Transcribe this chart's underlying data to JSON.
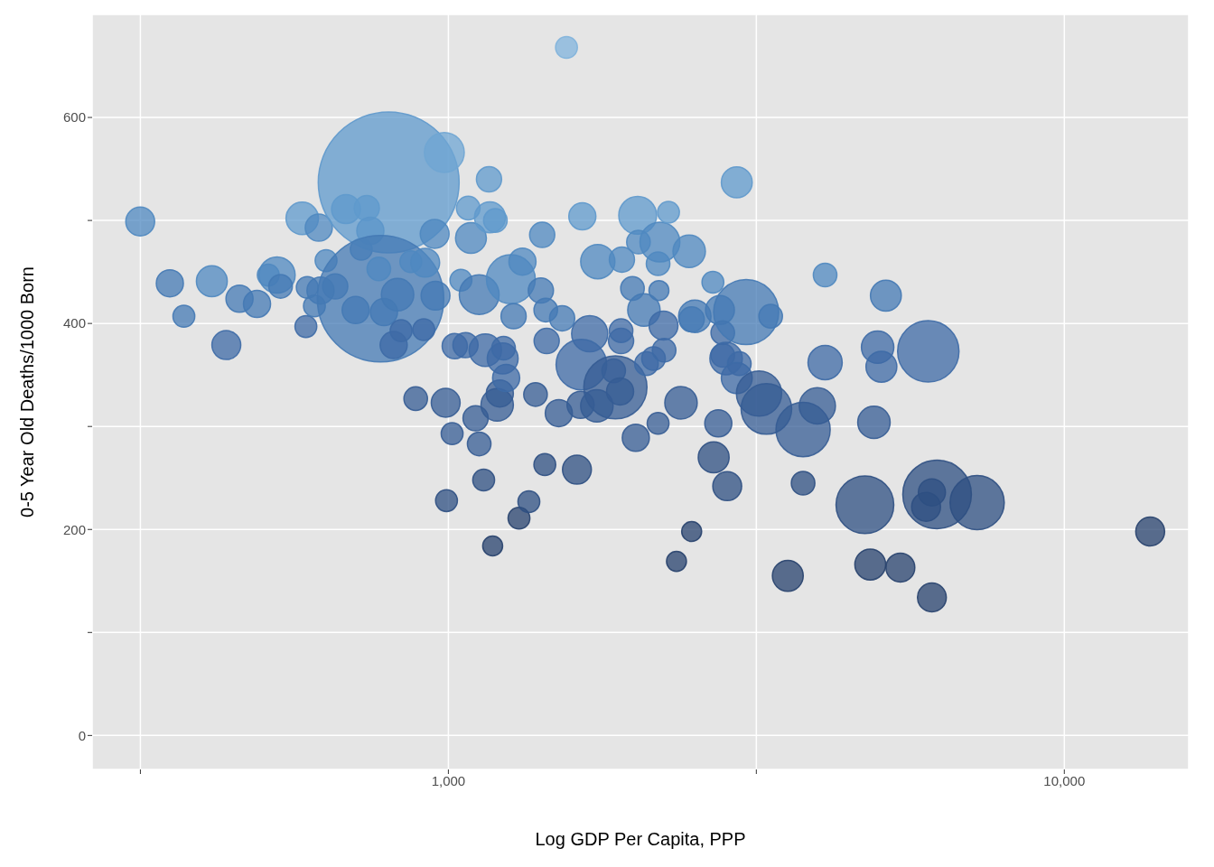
{
  "chart_data": {
    "type": "bubble",
    "xlabel": "Log GDP Per Capita, PPP",
    "ylabel": "0-5 Year Old Deaths/1000 Born",
    "log": "x",
    "grid": true,
    "xlim": [
      264,
      15920
    ],
    "ylim": [
      -33,
      700
    ],
    "xticks": [
      {
        "value": 316.2,
        "label": null
      },
      {
        "value": 1000,
        "label": "1,000"
      },
      {
        "value": 3162,
        "label": null
      },
      {
        "value": 10000,
        "label": "10,000"
      }
    ],
    "yticks": [
      0,
      {
        "value": 100,
        "label": null
      },
      200,
      {
        "value": 300,
        "label": null
      },
      400,
      {
        "value": 500,
        "label": null
      },
      600
    ],
    "x": [
      316,
      353,
      372,
      413,
      436,
      458,
      489,
      510,
      527,
      534,
      579,
      587,
      590,
      616,
      606,
      633,
      620,
      655,
      682,
      737,
      722,
      747,
      707,
      800,
      776,
      771,
      786,
      827,
      815,
      838,
      869,
      885,
      917,
      912,
      950,
      953,
      985,
      990,
      1014,
      993,
      1024,
      1048,
      1066,
      1077,
      1088,
      1107,
      1122,
      1122,
      1141,
      1148,
      1164,
      1168,
      1180,
      1192,
      1200,
      1212,
      1225,
      1229,
      1241,
      1263,
      1276,
      1302,
      1319,
      1351,
      1385,
      1413,
      1420,
      1434,
      1439,
      1444,
      1511,
      1530,
      1555,
      1617,
      1650,
      1639,
      1696,
      1644,
      1742,
      1748,
      1855,
      1867,
      1900,
      1907,
      1913,
      1907,
      1990,
      2015,
      2029,
      2035,
      2077,
      2097,
      2153,
      2190,
      2197,
      2205,
      2190,
      2235,
      2240,
      2277,
      2346,
      2386,
      2460,
      2483,
      2483,
      2512,
      2688,
      2696,
      2760,
      2743,
      2789,
      2789,
      2836,
      2824,
      2939,
      2967,
      2939,
      3044,
      3194,
      3283,
      3336,
      3557,
      3766,
      3766,
      3972,
      4089,
      4089,
      4745,
      4841,
      4908,
      4976,
      5047,
      5132,
      5418,
      6014,
      5964,
      6095,
      6095,
      6215,
      7219,
      13785
    ],
    "values": [
      499,
      439,
      407,
      441,
      379,
      424,
      419,
      447,
      447,
      436,
      502,
      397,
      435,
      493,
      417,
      461,
      432,
      436,
      511,
      512,
      472,
      490,
      413,
      537,
      424,
      453,
      411,
      428,
      379,
      393,
      460,
      327,
      459,
      394,
      487,
      427,
      566,
      323,
      293,
      228,
      378,
      442,
      379,
      512,
      483,
      308,
      283,
      428,
      248,
      374,
      540,
      503,
      184,
      500,
      321,
      332,
      366,
      376,
      347,
      443,
      407,
      211,
      460,
      227,
      331,
      432,
      486,
      263,
      413,
      383,
      313,
      405,
      668,
      258,
      504,
      321,
      390,
      360,
      320,
      460,
      354,
      338,
      334,
      383,
      462,
      393,
      434,
      289,
      505,
      479,
      413,
      361,
      366,
      458,
      432,
      479,
      303,
      398,
      374,
      508,
      169,
      323,
      470,
      198,
      404,
      407,
      440,
      270,
      413,
      303,
      391,
      369,
      242,
      366,
      537,
      361,
      347,
      411,
      332,
      317,
      407,
      155,
      297,
      245,
      320,
      447,
      362,
      224,
      166,
      304,
      377,
      358,
      427,
      163,
      373,
      222,
      236,
      134,
      234,
      226,
      198
    ],
    "sizes": [
      0.042,
      0.037,
      0.024,
      0.048,
      0.042,
      0.037,
      0.037,
      0.024,
      0.066,
      0.028,
      0.053,
      0.024,
      0.024,
      0.037,
      0.024,
      0.024,
      0.037,
      0.032,
      0.042,
      0.032,
      0.024,
      0.037,
      0.037,
      1,
      0.805,
      0.028,
      0.037,
      0.053,
      0.037,
      0.024,
      0.024,
      0.028,
      0.042,
      0.024,
      0.042,
      0.042,
      0.08,
      0.042,
      0.024,
      0.024,
      0.032,
      0.024,
      0.032,
      0.028,
      0.048,
      0.032,
      0.028,
      0.08,
      0.024,
      0.053,
      0.032,
      0.048,
      0.02,
      0.028,
      0.053,
      0.037,
      0.048,
      0.028,
      0.037,
      0.12,
      0.032,
      0.024,
      0.037,
      0.024,
      0.028,
      0.032,
      0.032,
      0.024,
      0.028,
      0.032,
      0.037,
      0.032,
      0.024,
      0.042,
      0.037,
      0.037,
      0.066,
      0.129,
      0.053,
      0.059,
      0.028,
      0.201,
      0.037,
      0.032,
      0.032,
      0.028,
      0.028,
      0.037,
      0.072,
      0.028,
      0.053,
      0.028,
      0.028,
      0.028,
      0.02,
      0.08,
      0.024,
      0.042,
      0.028,
      0.024,
      0.02,
      0.053,
      0.053,
      0.02,
      0.032,
      0.053,
      0.024,
      0.048,
      0.042,
      0.037,
      0.028,
      0.028,
      0.042,
      0.053,
      0.048,
      0.028,
      0.048,
      0.213,
      0.103,
      0.129,
      0.028,
      0.048,
      0.148,
      0.028,
      0.066,
      0.028,
      0.059,
      0.168,
      0.048,
      0.053,
      0.053,
      0.048,
      0.048,
      0.042,
      0.19,
      0.042,
      0.037,
      0.042,
      0.237,
      0.148,
      0.042
    ],
    "colors": [
      "#4f88c0",
      "#4479b4",
      "#4479b4",
      "#4f88c0",
      "#3d6aa6",
      "#4479b4",
      "#4479b4",
      "#4f88c0",
      "#4f88c0",
      "#4479b4",
      "#5f99cc",
      "#3d6aa6",
      "#4479b4",
      "#4f88c0",
      "#4479b4",
      "#4f88c0",
      "#4479b4",
      "#4479b4",
      "#5f99cc",
      "#5f99cc",
      "#4f88c0",
      "#4f88c0",
      "#4479b4",
      "#5f99cc",
      "#4479b4",
      "#4f88c0",
      "#4479b4",
      "#4479b4",
      "#3d6aa6",
      "#3d6aa6",
      "#4f88c0",
      "#355c94",
      "#4f88c0",
      "#3d6aa6",
      "#4f88c0",
      "#4479b4",
      "#6fa5d3",
      "#355c94",
      "#355c94",
      "#2e4f82",
      "#3d6aa6",
      "#4f88c0",
      "#3d6aa6",
      "#5f99cc",
      "#4f88c0",
      "#355c94",
      "#355c94",
      "#4479b4",
      "#2e4f82",
      "#3d6aa6",
      "#5f99cc",
      "#5f99cc",
      "#27416d",
      "#5f99cc",
      "#355c94",
      "#355c94",
      "#3d6aa6",
      "#3d6aa6",
      "#3d6aa6",
      "#4f88c0",
      "#4479b4",
      "#27416d",
      "#4f88c0",
      "#2e4f82",
      "#355c94",
      "#4479b4",
      "#4f88c0",
      "#2e4f82",
      "#4479b4",
      "#3d6aa6",
      "#355c94",
      "#4479b4",
      "#80b3dc",
      "#2e4f82",
      "#5f99cc",
      "#355c94",
      "#3d6aa6",
      "#3d6aa6",
      "#355c94",
      "#4f88c0",
      "#3d6aa6",
      "#355c94",
      "#355c94",
      "#3d6aa6",
      "#4f88c0",
      "#3d6aa6",
      "#4479b4",
      "#355c94",
      "#5f99cc",
      "#4f88c0",
      "#4479b4",
      "#3d6aa6",
      "#3d6aa6",
      "#4f88c0",
      "#4479b4",
      "#4f88c0",
      "#355c94",
      "#3d6aa6",
      "#3d6aa6",
      "#5f99cc",
      "#27416d",
      "#355c94",
      "#4f88c0",
      "#27416d",
      "#4479b4",
      "#4479b4",
      "#4f88c0",
      "#2e4f82",
      "#4479b4",
      "#355c94",
      "#3d6aa6",
      "#3d6aa6",
      "#2e4f82",
      "#3d6aa6",
      "#5f99cc",
      "#3d6aa6",
      "#3d6aa6",
      "#4479b4",
      "#355c94",
      "#355c94",
      "#4479b4",
      "#27416d",
      "#355c94",
      "#2e4f82",
      "#355c94",
      "#4f88c0",
      "#3d6aa6",
      "#2e4f82",
      "#27416d",
      "#355c94",
      "#3d6aa6",
      "#3d6aa6",
      "#4479b4",
      "#27416d",
      "#3d6aa6",
      "#2e4f82",
      "#2e4f82",
      "#27416d",
      "#2e4f82",
      "#2e4f82",
      "#27416d"
    ]
  }
}
